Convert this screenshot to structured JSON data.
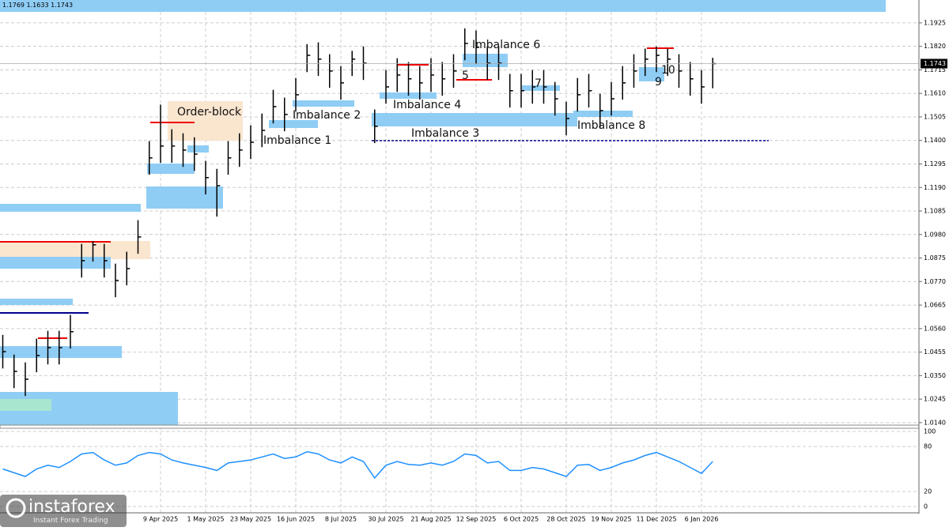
{
  "chart_data": {
    "type": "ohlc",
    "header": "1.1769 1.1633 1.1743",
    "last_price": 1.1743,
    "categories": [
      null,
      null,
      null,
      null,
      null,
      null,
      null,
      null,
      null,
      null,
      null,
      null,
      null,
      null,
      "9 Apr 2025",
      null,
      null,
      null,
      "1 May 2025",
      null,
      null,
      null,
      "23 May 2025",
      null,
      null,
      null,
      "16 Jun 2025",
      null,
      null,
      null,
      "8 Jul 2025",
      null,
      null,
      null,
      "30 Jul 2025",
      null,
      null,
      null,
      "21 Aug 2025",
      null,
      null,
      null,
      "12 Sep 2025",
      null,
      null,
      null,
      "6 Oct 2025",
      null,
      null,
      null,
      "28 Oct 2025",
      null,
      null,
      null,
      "19 Nov 2025",
      null,
      null,
      null,
      "11 Dec 2025",
      null,
      null,
      null,
      "6 Jan 2026",
      null
    ],
    "high": [
      1.0532,
      1.0444,
      1.0409,
      1.0515,
      1.055,
      1.055,
      1.0621,
      1.0938,
      1.095,
      1.0938,
      1.085,
      1.0903,
      1.1044,
      1.1397,
      1.156,
      1.145,
      1.1432,
      1.1414,
      1.1309,
      1.1273,
      1.1397,
      1.1432,
      1.1467,
      1.152,
      1.1626,
      1.1591,
      1.1679,
      1.183,
      1.1838,
      1.1785,
      1.1732,
      1.18,
      1.182,
      1.1538,
      1.1714,
      1.1767,
      1.175,
      1.1732,
      1.1767,
      1.175,
      1.1785,
      1.19,
      1.1891,
      1.182,
      1.182,
      1.1697,
      1.1697,
      1.1714,
      1.1714,
      1.1661,
      1.1573,
      1.1679,
      1.1697,
      1.1608,
      1.1661,
      1.1732,
      1.1785,
      1.181,
      1.182,
      1.181,
      1.1785,
      1.175,
      1.1714,
      1.1769
    ],
    "low": [
      1.0382,
      1.0294,
      1.0259,
      1.0365,
      1.04,
      1.04,
      1.0471,
      1.0788,
      1.0859,
      1.0788,
      1.07,
      1.0753,
      1.0894,
      1.1247,
      1.13,
      1.13,
      1.1282,
      1.1264,
      1.1159,
      1.106,
      1.1247,
      1.1282,
      1.1317,
      1.137,
      1.1476,
      1.1441,
      1.1529,
      1.1705,
      1.1688,
      1.1635,
      1.1582,
      1.1688,
      1.167,
      1.1388,
      1.1564,
      1.1617,
      1.16,
      1.1582,
      1.1617,
      1.16,
      1.1635,
      1.1758,
      1.1741,
      1.167,
      1.167,
      1.1547,
      1.1547,
      1.1564,
      1.1564,
      1.1511,
      1.1423,
      1.1529,
      1.1547,
      1.1458,
      1.1511,
      1.1582,
      1.1635,
      1.1688,
      1.1705,
      1.1688,
      1.1635,
      1.16,
      1.1564,
      1.1633
    ],
    "close": [
      1.0457,
      1.0369,
      1.0334,
      1.044,
      1.0475,
      1.0475,
      1.0546,
      1.0863,
      1.0934,
      1.0863,
      1.0775,
      1.0828,
      1.0969,
      1.1322,
      1.1375,
      1.1375,
      1.1357,
      1.1339,
      1.1234,
      1.1198,
      1.1322,
      1.1357,
      1.1392,
      1.1445,
      1.1551,
      1.1516,
      1.1604,
      1.178,
      1.1763,
      1.171,
      1.1657,
      1.1763,
      1.1745,
      1.1463,
      1.1639,
      1.1692,
      1.1675,
      1.1657,
      1.1692,
      1.1675,
      1.171,
      1.1833,
      1.1816,
      1.1745,
      1.1745,
      1.1622,
      1.1622,
      1.1639,
      1.1639,
      1.1586,
      1.1498,
      1.1604,
      1.1622,
      1.1533,
      1.1586,
      1.1657,
      1.171,
      1.1763,
      1.178,
      1.1763,
      1.171,
      1.1675,
      1.1639,
      1.1743
    ],
    "color": "#000000",
    "ylim": [
      1.0129,
      1.2027
    ],
    "yticks": [
      1.1925,
      {
        "value": 1.182,
        "label": "1.1820"
      },
      1.1715,
      {
        "value": 1.161,
        "label": "1.1610"
      },
      1.1505,
      {
        "value": 1.14,
        "label": "1.1400"
      },
      1.1295,
      {
        "value": 1.119,
        "label": "1.1190"
      },
      1.1085,
      {
        "value": 1.098,
        "label": "1.0980"
      },
      1.0875,
      {
        "value": 1.077,
        "label": "1.0770"
      },
      1.0665,
      {
        "value": 1.056,
        "label": "1.0560"
      },
      1.0455,
      {
        "value": 1.035,
        "label": "1.0350"
      },
      1.0245,
      {
        "value": 1.014,
        "label": "1.0140"
      }
    ],
    "grid": true,
    "annotations": [
      "Order-block",
      "Imbalance 1",
      "Imbalance 2",
      "Imbalance 3",
      "Imbalance 4",
      "5",
      "Imbalance 6",
      "7",
      "Imbalance 8",
      "9",
      "10"
    ],
    "oscillator": {
      "color": "#1e90ff",
      "ylim": [
        0,
        100
      ],
      "yticks": [
        100,
        80,
        20,
        0
      ],
      "values": [
        50,
        45,
        40,
        50,
        55,
        52,
        60,
        70,
        72,
        62,
        55,
        58,
        68,
        72,
        70,
        62,
        58,
        55,
        52,
        48,
        58,
        60,
        62,
        66,
        70,
        64,
        66,
        73,
        70,
        62,
        58,
        66,
        60,
        38,
        55,
        60,
        56,
        55,
        58,
        55,
        60,
        70,
        68,
        58,
        60,
        48,
        48,
        52,
        50,
        45,
        40,
        55,
        56,
        48,
        52,
        58,
        62,
        68,
        72,
        66,
        60,
        52,
        44,
        60
      ]
    },
    "logo": {
      "name": "instaforex",
      "tagline": "Instant Forex Trading"
    }
  }
}
